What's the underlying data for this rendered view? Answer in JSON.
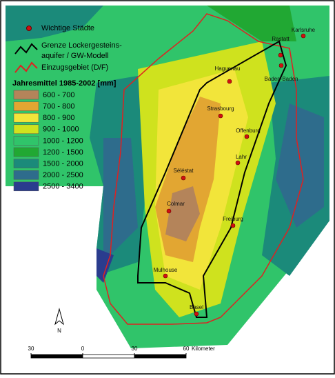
{
  "legend": {
    "cities": "Wichtige Städte",
    "aquifer": [
      "Grenze Lockergesteins-",
      "aquifer / GW-Modell"
    ],
    "catchment": "Einzugsgebiet (D/F)",
    "title": "Jahresmittel 1985-2002 [mm]",
    "classes": [
      {
        "label": "600 - 700",
        "color": "#b4845a"
      },
      {
        "label": "700 - 800",
        "color": "#e2a632"
      },
      {
        "label": "800 - 900",
        "color": "#f2e53a"
      },
      {
        "label": "900 - 1000",
        "color": "#cfe21e"
      },
      {
        "label": "1000 - 1200",
        "color": "#30c46a"
      },
      {
        "label": "1200 - 1500",
        "color": "#21a833"
      },
      {
        "label": "1500 - 2000",
        "color": "#1b8a7a"
      },
      {
        "label": "2000 - 2500",
        "color": "#2e6c8c"
      },
      {
        "label": "2500 - 3400",
        "color": "#2a3c8e"
      }
    ]
  },
  "cities": [
    "Karlsruhe",
    "Rastatt",
    "Haguenau",
    "Baden-Baden",
    "Strasbourg",
    "Offenburg",
    "Lahr",
    "Séléstat",
    "Colmar",
    "Freiburg",
    "Mulhouse",
    "Basel"
  ],
  "north_arrow": "N",
  "scale_bar": {
    "ticks": [
      {
        "value": -30,
        "label": "30"
      },
      0,
      30,
      60
    ],
    "unit": "Kilometer"
  }
}
